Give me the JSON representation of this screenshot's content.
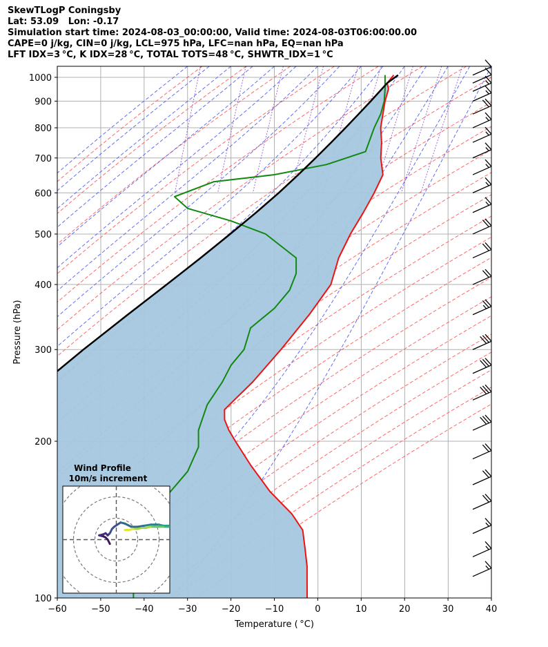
{
  "header": {
    "line1": "SkewTLogP Coningsby",
    "line2": "Lat: 53.09   Lon: -0.17",
    "line3": "Simulation start time: 2024-08-03_00:00:00, Valid time: 2024-08-03T06:00:00.00",
    "line4": "CAPE=0 j/kg, CIN=0 j/kg, LCL=975 hPa, LFC=nan hPa, EQ=nan hPa",
    "line5": "LFT IDX=3 °C, K IDX=28 °C, TOTAL TOTS=48 °C, SHWTR_IDX=1 °C"
  },
  "chart_data": {
    "type": "skewt-logp",
    "xlabel": "Temperature ( °C)",
    "ylabel": "Pressure (hPa)",
    "xlim": [
      -60,
      40
    ],
    "ylim": [
      1050,
      100
    ],
    "x_ticks": [
      "−60",
      "−50",
      "−40",
      "−30",
      "−20",
      "−10",
      "0",
      "10",
      "20",
      "30",
      "40"
    ],
    "y_ticks": [
      "100",
      "200",
      "300",
      "400",
      "500",
      "600",
      "700",
      "800",
      "900",
      "1000"
    ],
    "temperature": {
      "color": "#ee1111",
      "points": [
        [
          1010,
          17.5
        ],
        [
          975,
          16
        ],
        [
          950,
          16.3
        ],
        [
          900,
          15.5
        ],
        [
          850,
          15
        ],
        [
          800,
          14.5
        ],
        [
          750,
          14.7
        ],
        [
          700,
          14.5
        ],
        [
          650,
          15
        ],
        [
          600,
          13
        ],
        [
          550,
          10.5
        ],
        [
          500,
          7.5
        ],
        [
          450,
          4.8
        ],
        [
          400,
          3
        ],
        [
          350,
          -2
        ],
        [
          300,
          -8.5
        ],
        [
          260,
          -15
        ],
        [
          230,
          -21.5
        ],
        [
          220,
          -21.5
        ],
        [
          210,
          -20.5
        ],
        [
          200,
          -19
        ],
        [
          180,
          -15.5
        ],
        [
          160,
          -11
        ],
        [
          145,
          -6
        ],
        [
          135,
          -3.5
        ],
        [
          125,
          -3
        ],
        [
          115,
          -2.5
        ],
        [
          108,
          -2.5
        ],
        [
          100,
          -2.5
        ]
      ]
    },
    "dewpoint": {
      "color": "#118811",
      "points": [
        [
          1010,
          15.5
        ],
        [
          975,
          15.5
        ],
        [
          950,
          15.5
        ],
        [
          900,
          15.3
        ],
        [
          850,
          14.5
        ],
        [
          800,
          13
        ],
        [
          720,
          11
        ],
        [
          680,
          2
        ],
        [
          650,
          -10
        ],
        [
          630,
          -24
        ],
        [
          590,
          -33
        ],
        [
          560,
          -30
        ],
        [
          530,
          -20
        ],
        [
          500,
          -12
        ],
        [
          450,
          -5
        ],
        [
          420,
          -5
        ],
        [
          390,
          -6.5
        ],
        [
          360,
          -10
        ],
        [
          330,
          -15.5
        ],
        [
          300,
          -17
        ],
        [
          280,
          -20
        ],
        [
          260,
          -22
        ],
        [
          235,
          -25.5
        ],
        [
          210,
          -27.5
        ],
        [
          195,
          -27.5
        ],
        [
          175,
          -30
        ],
        [
          160,
          -34
        ],
        [
          150,
          -37
        ],
        [
          140,
          -43.5
        ],
        [
          130,
          -44
        ],
        [
          110,
          -42.5
        ],
        [
          100,
          -42.5
        ]
      ]
    },
    "parcel": {
      "color": "#000000",
      "points": [
        [
          1010,
          18.5
        ],
        [
          975,
          16
        ],
        [
          900,
          12.2
        ],
        [
          850,
          9.4
        ],
        [
          800,
          6.4
        ],
        [
          750,
          3.1
        ],
        [
          700,
          -0.5
        ],
        [
          650,
          -4.5
        ],
        [
          600,
          -9
        ],
        [
          550,
          -14.2
        ],
        [
          500,
          -20.2
        ],
        [
          450,
          -27
        ],
        [
          400,
          -34.8
        ],
        [
          350,
          -43.8
        ],
        [
          300,
          -54
        ],
        [
          250,
          -65.5
        ],
        [
          200,
          -78
        ],
        [
          150,
          -92
        ],
        [
          100,
          -108
        ]
      ]
    },
    "shading": {
      "label": "",
      "color": "#a5c7df"
    },
    "wind_barbs": [
      {
        "p": 1010,
        "flags": 0,
        "full": 1,
        "half": 0
      },
      {
        "p": 975,
        "flags": 0,
        "full": 1,
        "half": 0
      },
      {
        "p": 940,
        "flags": 0,
        "full": 1,
        "half": 1
      },
      {
        "p": 900,
        "flags": 0,
        "full": 1,
        "half": 1
      },
      {
        "p": 850,
        "flags": 0,
        "full": 2,
        "half": 0
      },
      {
        "p": 800,
        "flags": 0,
        "full": 1,
        "half": 1
      },
      {
        "p": 750,
        "flags": 0,
        "full": 1,
        "half": 1
      },
      {
        "p": 700,
        "flags": 0,
        "full": 1,
        "half": 1
      },
      {
        "p": 650,
        "flags": 0,
        "full": 1,
        "half": 1
      },
      {
        "p": 600,
        "flags": 0,
        "full": 1,
        "half": 1
      },
      {
        "p": 550,
        "flags": 0,
        "full": 1,
        "half": 1
      },
      {
        "p": 500,
        "flags": 0,
        "full": 2,
        "half": 0
      },
      {
        "p": 450,
        "flags": 0,
        "full": 2,
        "half": 0
      },
      {
        "p": 400,
        "flags": 0,
        "full": 2,
        "half": 0
      },
      {
        "p": 350,
        "flags": 0,
        "full": 2,
        "half": 1
      },
      {
        "p": 300,
        "flags": 0,
        "full": 3,
        "half": 0
      },
      {
        "p": 270,
        "flags": 0,
        "full": 3,
        "half": 0
      },
      {
        "p": 240,
        "flags": 0,
        "full": 3,
        "half": 0
      },
      {
        "p": 210,
        "flags": 0,
        "full": 3,
        "half": 0
      },
      {
        "p": 185,
        "flags": 0,
        "full": 2,
        "half": 0
      },
      {
        "p": 165,
        "flags": 0,
        "full": 2,
        "half": 0
      },
      {
        "p": 148,
        "flags": 0,
        "full": 2,
        "half": 0
      },
      {
        "p": 133,
        "flags": 0,
        "full": 1,
        "half": 1
      },
      {
        "p": 120,
        "flags": 0,
        "full": 1,
        "half": 1
      },
      {
        "p": 110,
        "flags": 0,
        "full": 1,
        "half": 1
      }
    ],
    "hodograph": {
      "title": "Wind Profile",
      "subtitle": "10m/s increment",
      "rings": [
        10,
        20,
        30
      ],
      "xlim": [
        -25,
        25
      ],
      "ylim": [
        -25,
        25
      ],
      "points": [
        [
          -3,
          -2
        ],
        [
          -4,
          0
        ],
        [
          -5,
          1
        ],
        [
          -6,
          1.5
        ],
        [
          -8,
          2
        ],
        [
          -6,
          2.5
        ],
        [
          -5,
          3
        ],
        [
          -4,
          2
        ],
        [
          -3,
          3
        ],
        [
          -2,
          5
        ],
        [
          -1,
          6
        ],
        [
          2,
          8
        ],
        [
          4,
          7.5
        ],
        [
          7,
          6
        ],
        [
          10,
          6
        ],
        [
          13,
          6.5
        ],
        [
          16,
          7
        ],
        [
          18,
          7
        ],
        [
          20,
          7
        ],
        [
          22,
          6.5
        ],
        [
          24,
          6.5
        ],
        [
          26,
          6.5
        ],
        [
          27,
          6.5
        ],
        [
          28,
          6.5
        ],
        [
          26,
          6
        ],
        [
          24,
          6
        ],
        [
          22,
          6
        ],
        [
          20,
          6
        ],
        [
          18,
          6
        ],
        [
          16,
          6
        ],
        [
          14,
          5.5
        ],
        [
          12,
          5.5
        ],
        [
          10,
          5
        ],
        [
          8,
          5
        ],
        [
          6,
          4.5
        ],
        [
          4,
          4.5
        ]
      ]
    }
  }
}
